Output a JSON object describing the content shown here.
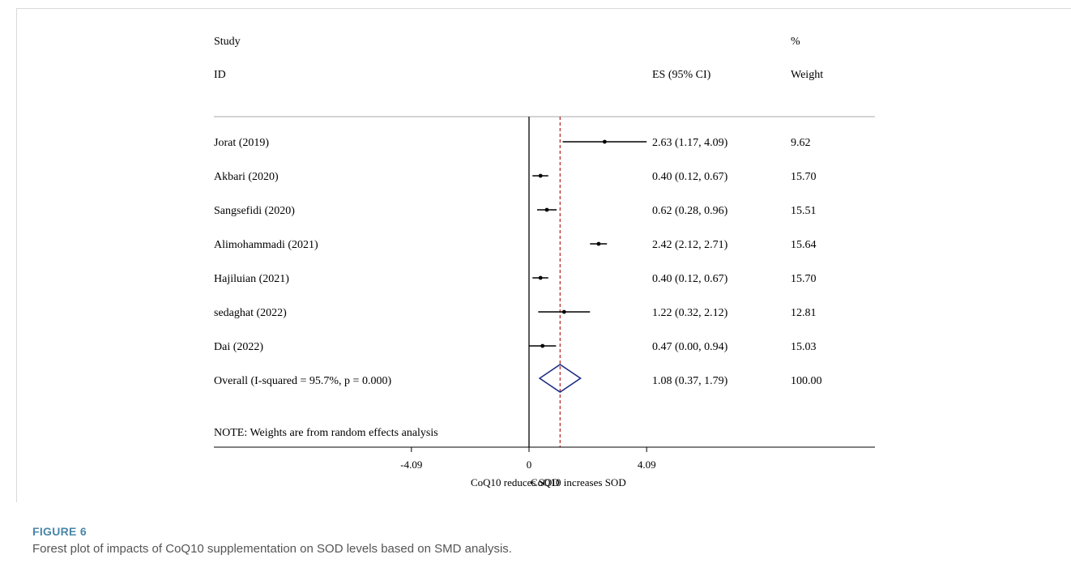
{
  "figure": {
    "label": "FIGURE 6",
    "caption": "Forest plot of impacts of CoQ10 supplementation on SOD levels based on SMD analysis."
  },
  "chart_data": {
    "type": "forest",
    "headers": {
      "study_line1": "Study",
      "study_line2": "ID",
      "es": "ES (95% CI)",
      "weight_line1": "%",
      "weight_line2": "Weight"
    },
    "studies": [
      {
        "label": "Jorat (2019)",
        "es": 2.63,
        "lo": 1.17,
        "hi": 4.09,
        "es_text": "2.63 (1.17, 4.09)",
        "weight_text": "9.62"
      },
      {
        "label": "Akbari (2020)",
        "es": 0.4,
        "lo": 0.12,
        "hi": 0.67,
        "es_text": "0.40 (0.12, 0.67)",
        "weight_text": "15.70"
      },
      {
        "label": "Sangsefidi (2020)",
        "es": 0.62,
        "lo": 0.28,
        "hi": 0.96,
        "es_text": "0.62 (0.28, 0.96)",
        "weight_text": "15.51"
      },
      {
        "label": "Alimohammadi (2021)",
        "es": 2.42,
        "lo": 2.12,
        "hi": 2.71,
        "es_text": "2.42 (2.12, 2.71)",
        "weight_text": "15.64"
      },
      {
        "label": "Hajiluian (2021)",
        "es": 0.4,
        "lo": 0.12,
        "hi": 0.67,
        "es_text": "0.40 (0.12, 0.67)",
        "weight_text": "15.70"
      },
      {
        "label": "sedaghat (2022)",
        "es": 1.22,
        "lo": 0.32,
        "hi": 2.12,
        "es_text": "1.22 (0.32, 2.12)",
        "weight_text": "12.81"
      },
      {
        "label": "Dai (2022)",
        "es": 0.47,
        "lo": 0.0,
        "hi": 0.94,
        "es_text": "0.47 (0.00, 0.94)",
        "weight_text": "15.03"
      }
    ],
    "overall": {
      "label": "Overall  (I-squared = 95.7%, p = 0.000)",
      "es": 1.08,
      "lo": 0.37,
      "hi": 1.79,
      "es_text": "1.08 (0.37, 1.79)",
      "weight_text": "100.00"
    },
    "note": "NOTE: Weights are from random effects analysis",
    "x_ticks": [
      {
        "value": -4.09,
        "label": "-4.09"
      },
      {
        "value": 0,
        "label": "0"
      },
      {
        "value": 4.09,
        "label": "4.09"
      }
    ],
    "x_range": [
      -4.09,
      4.09
    ],
    "xlabel_left": "CoQ10 reduces SOD",
    "xlabel_right": "CoQ10 increases SOD",
    "colors": {
      "line": "#000000",
      "reference": "#b22222",
      "diamond": "#1f2f86"
    }
  }
}
